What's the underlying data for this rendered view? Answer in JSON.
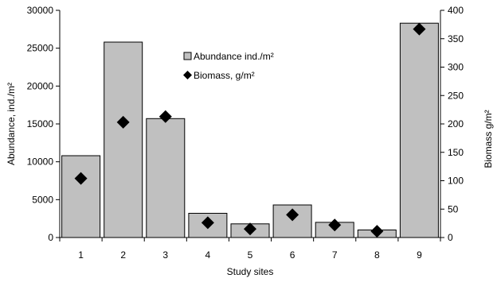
{
  "chart_data": {
    "type": "bar",
    "categories": [
      "1",
      "2",
      "3",
      "4",
      "5",
      "6",
      "7",
      "8",
      "9"
    ],
    "series": [
      {
        "name": "Abundance ind./m²",
        "kind": "bar",
        "axis": "left",
        "color": "#c0c0c0",
        "values": [
          10800,
          25800,
          15700,
          3200,
          1800,
          4300,
          2000,
          1000,
          28300
        ]
      },
      {
        "name": "Biomass, g/m²",
        "kind": "scatter",
        "marker": "diamond",
        "axis": "right",
        "color": "#000000",
        "values": [
          104,
          203,
          213,
          26,
          15,
          40,
          22,
          11,
          367
        ]
      }
    ],
    "xlabel": "Study sites",
    "ylabel": "Abundance, ind./m²",
    "y2label": "Biomass g/m²",
    "ylim": [
      0,
      30000
    ],
    "y2lim": [
      0,
      400
    ],
    "yticks": [
      0,
      5000,
      10000,
      15000,
      20000,
      25000,
      30000
    ],
    "y2ticks": [
      0,
      50,
      100,
      150,
      200,
      250,
      300,
      350,
      400
    ],
    "grid": false,
    "legend_position": "top-center"
  }
}
